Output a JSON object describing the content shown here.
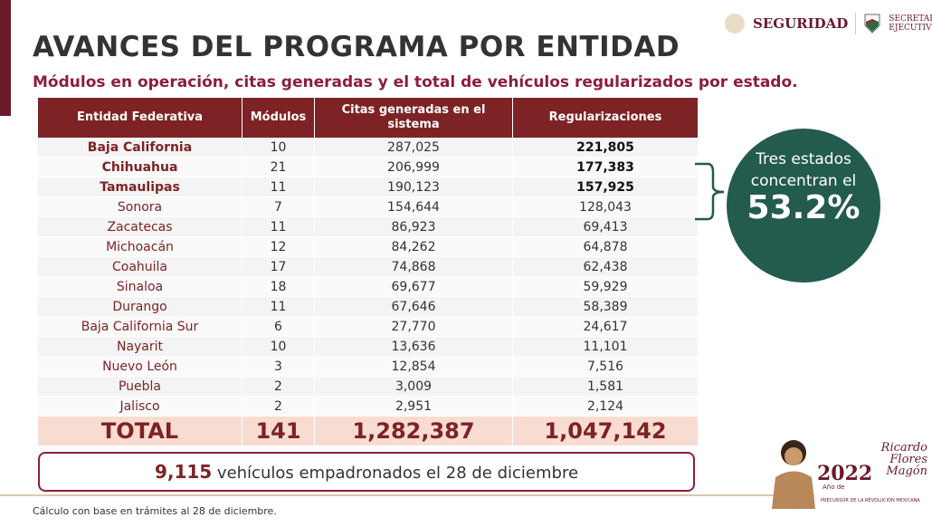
{
  "header": {
    "title": "AVANCES DEL PROGRAMA POR ENTIDAD",
    "subtitle": "Módulos en operación, citas generadas y el total de vehículos regularizados por estado.",
    "logo_seguridad": "SEGURIDAD",
    "logo_secretariado": "SECRETARIADO EJECUTIVO"
  },
  "table": {
    "columns": [
      "Entidad Federativa",
      "Módulos",
      "Citas generadas en el sistema",
      "Regularizaciones"
    ],
    "rows": [
      [
        "Baja California",
        "10",
        "287,025",
        "221,805"
      ],
      [
        "Chihuahua",
        "21",
        "206,999",
        "177,383"
      ],
      [
        "Tamaulipas",
        "11",
        "190,123",
        "157,925"
      ],
      [
        "Sonora",
        "7",
        "154,644",
        "128,043"
      ],
      [
        "Zacatecas",
        "11",
        "86,923",
        "69,413"
      ],
      [
        "Michoacán",
        "12",
        "84,262",
        "64,878"
      ],
      [
        "Coahuila",
        "17",
        "74,868",
        "62,438"
      ],
      [
        "Sinaloa",
        "18",
        "69,677",
        "59,929"
      ],
      [
        "Durango",
        "11",
        "67,646",
        "58,389"
      ],
      [
        "Baja California Sur",
        "6",
        "27,770",
        "24,617"
      ],
      [
        "Nayarit",
        "10",
        "13,636",
        "11,101"
      ],
      [
        "Nuevo León",
        "3",
        "12,854",
        "7,516"
      ],
      [
        "Puebla",
        "2",
        "3,009",
        "1,581"
      ],
      [
        "Jalisco",
        "2",
        "2,951",
        "2,124"
      ]
    ],
    "total": [
      "TOTAL",
      "141",
      "1,282,387",
      "1,047,142"
    ]
  },
  "callout": {
    "text": "Tres estados concentran el",
    "percent": "53.2%",
    "color": "#235b4e"
  },
  "note": {
    "number": "9,115",
    "text": " vehículos empadronados el 28 de diciembre"
  },
  "footer": "Cálculo con base en trámites al 28 de diciembre.",
  "emblem": {
    "year": "2022",
    "line1": "Año de",
    "name": "Ricardo Flores Magón",
    "tagline": "PRECURSOR DE LA REVOLUCIÓN MEXICANA"
  },
  "colors": {
    "maroon": "#7d2325",
    "green": "#235b4e"
  }
}
